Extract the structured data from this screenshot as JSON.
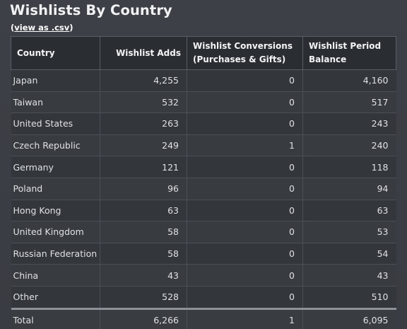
{
  "page": {
    "title": "Wishlists By Country",
    "csv_open": "(",
    "csv_link": "view as .csv",
    "csv_close": ")"
  },
  "table": {
    "headers": [
      "Country",
      "Wishlist Adds",
      "Wishlist Conversions (Purchases & Gifts)",
      "Wishlist Period Balance"
    ],
    "rows": [
      {
        "country": "Japan",
        "adds": "4,255",
        "conversions": "0",
        "balance": "4,160"
      },
      {
        "country": "Taiwan",
        "adds": "532",
        "conversions": "0",
        "balance": "517"
      },
      {
        "country": "United States",
        "adds": "263",
        "conversions": "0",
        "balance": "243"
      },
      {
        "country": "Czech Republic",
        "adds": "249",
        "conversions": "1",
        "balance": "240"
      },
      {
        "country": "Germany",
        "adds": "121",
        "conversions": "0",
        "balance": "118"
      },
      {
        "country": "Poland",
        "adds": "96",
        "conversions": "0",
        "balance": "94"
      },
      {
        "country": "Hong Kong",
        "adds": "63",
        "conversions": "0",
        "balance": "63"
      },
      {
        "country": "United Kingdom",
        "adds": "58",
        "conversions": "0",
        "balance": "53"
      },
      {
        "country": "Russian Federation",
        "adds": "58",
        "conversions": "0",
        "balance": "54"
      },
      {
        "country": "China",
        "adds": "43",
        "conversions": "0",
        "balance": "43"
      },
      {
        "country": "Other",
        "adds": "528",
        "conversions": "0",
        "balance": "510"
      }
    ],
    "total": {
      "country": "Total",
      "adds": "6,266",
      "conversions": "1",
      "balance": "6,095"
    }
  }
}
